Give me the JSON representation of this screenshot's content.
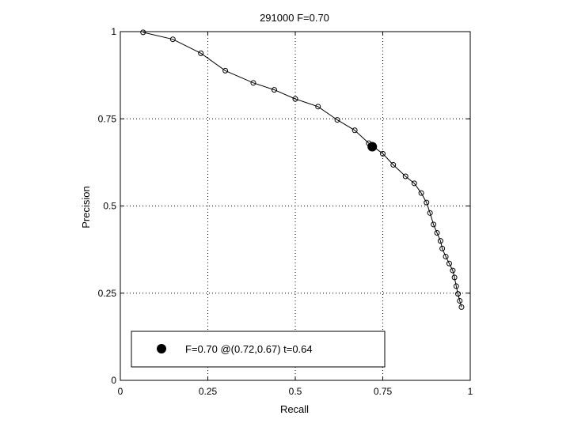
{
  "chart_data": {
    "type": "line",
    "title": "291000 F=0.70",
    "xlabel": "Recall",
    "ylabel": "Precision",
    "xlim": [
      0,
      1
    ],
    "ylim": [
      0,
      1
    ],
    "grid": true,
    "xticks": [
      0,
      0.25,
      0.5,
      0.75,
      1
    ],
    "yticks": [
      0,
      0.25,
      0.5,
      0.75,
      1
    ],
    "xtick_labels": [
      "0",
      "0.25",
      "0.5",
      "0.75",
      "1"
    ],
    "ytick_labels": [
      "0",
      "0.25",
      "0.5",
      "0.75",
      "1"
    ],
    "series": [
      {
        "marker": "open-circle",
        "points": [
          [
            0.065,
            0.998
          ],
          [
            0.15,
            0.978
          ],
          [
            0.23,
            0.938
          ],
          [
            0.3,
            0.888
          ],
          [
            0.38,
            0.853
          ],
          [
            0.44,
            0.833
          ],
          [
            0.5,
            0.807
          ],
          [
            0.565,
            0.785
          ],
          [
            0.62,
            0.747
          ],
          [
            0.67,
            0.717
          ],
          [
            0.71,
            0.68
          ],
          [
            0.75,
            0.65
          ],
          [
            0.78,
            0.618
          ],
          [
            0.815,
            0.585
          ],
          [
            0.84,
            0.565
          ],
          [
            0.86,
            0.537
          ],
          [
            0.875,
            0.51
          ],
          [
            0.885,
            0.48
          ],
          [
            0.895,
            0.447
          ],
          [
            0.905,
            0.423
          ],
          [
            0.915,
            0.4
          ],
          [
            0.92,
            0.378
          ],
          [
            0.93,
            0.355
          ],
          [
            0.94,
            0.335
          ],
          [
            0.95,
            0.315
          ],
          [
            0.955,
            0.295
          ],
          [
            0.96,
            0.27
          ],
          [
            0.965,
            0.248
          ],
          [
            0.97,
            0.228
          ],
          [
            0.975,
            0.21
          ]
        ]
      }
    ],
    "highlight": {
      "recall": 0.72,
      "precision": 0.67,
      "marker": "filled-circle"
    },
    "legend": {
      "placement": "bottom-left",
      "entry": "F=0.70 @(0.72,0.67) t=0.64"
    }
  }
}
